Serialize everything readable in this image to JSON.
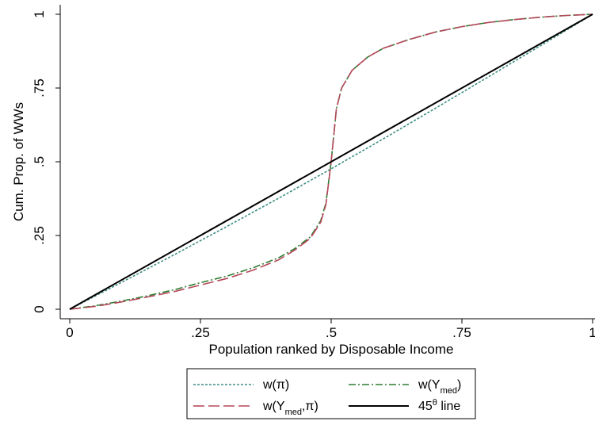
{
  "chart_data": {
    "type": "line",
    "title": "",
    "xlabel": "Population ranked by Disposable Income",
    "ylabel": "Cum. Prop. of WWs",
    "xlim": [
      0,
      1
    ],
    "ylim": [
      0,
      1
    ],
    "x_ticks": [
      {
        "value": 0,
        "label": "0"
      },
      {
        "value": 0.25,
        "label": ".25"
      },
      {
        "value": 0.5,
        "label": ".5"
      },
      {
        "value": 0.75,
        "label": ".75"
      },
      {
        "value": 1,
        "label": "1"
      }
    ],
    "y_ticks": [
      {
        "value": 0,
        "label": "0"
      },
      {
        "value": 0.25,
        "label": ".25"
      },
      {
        "value": 0.5,
        "label": ".5"
      },
      {
        "value": 0.75,
        "label": ".75"
      },
      {
        "value": 1,
        "label": "1"
      }
    ],
    "grid": false,
    "legend_position": "bottom",
    "series": [
      {
        "key": "w_pi",
        "name": "w(π)",
        "name_parts": [
          "w(π)"
        ],
        "color": "#3f8f83",
        "dash": "dotted",
        "x": [
          0,
          0.1,
          0.2,
          0.3,
          0.4,
          0.5,
          0.6,
          0.7,
          0.8,
          0.9,
          1.0
        ],
        "y": [
          0,
          0.092,
          0.185,
          0.28,
          0.377,
          0.476,
          0.578,
          0.682,
          0.787,
          0.893,
          1.0
        ]
      },
      {
        "key": "w_ymed",
        "name": "w(Ymed)",
        "name_parts": [
          "w(Y",
          "med",
          ")"
        ],
        "color": "#2e7d32",
        "dash": "dashdot",
        "x": [
          0,
          0.05,
          0.1,
          0.15,
          0.2,
          0.25,
          0.3,
          0.35,
          0.4,
          0.43,
          0.46,
          0.48,
          0.49,
          0.5,
          0.51,
          0.52,
          0.54,
          0.57,
          0.6,
          0.65,
          0.7,
          0.75,
          0.8,
          0.85,
          0.9,
          0.95,
          1.0
        ],
        "y": [
          0,
          0.012,
          0.028,
          0.046,
          0.066,
          0.09,
          0.112,
          0.14,
          0.175,
          0.205,
          0.245,
          0.3,
          0.36,
          0.5,
          0.68,
          0.75,
          0.81,
          0.855,
          0.885,
          0.915,
          0.94,
          0.958,
          0.972,
          0.982,
          0.99,
          0.996,
          1.0
        ]
      },
      {
        "key": "w_ymed_pi",
        "name": "w(Ymed,π)",
        "name_parts": [
          "w(Y",
          "med",
          ",π)"
        ],
        "color": "#b5485a",
        "dash": "longdash",
        "x": [
          0,
          0.05,
          0.1,
          0.15,
          0.2,
          0.25,
          0.3,
          0.35,
          0.4,
          0.43,
          0.46,
          0.48,
          0.49,
          0.5,
          0.51,
          0.52,
          0.54,
          0.57,
          0.6,
          0.65,
          0.7,
          0.75,
          0.8,
          0.85,
          0.9,
          0.95,
          1.0
        ],
        "y": [
          0,
          0.01,
          0.025,
          0.042,
          0.06,
          0.082,
          0.104,
          0.132,
          0.168,
          0.2,
          0.24,
          0.295,
          0.355,
          0.5,
          0.68,
          0.75,
          0.81,
          0.855,
          0.885,
          0.915,
          0.94,
          0.958,
          0.972,
          0.982,
          0.99,
          0.996,
          1.0
        ]
      },
      {
        "key": "line45",
        "name": "45θ line",
        "name_parts": [
          "45",
          "θ",
          " line"
        ],
        "color": "#000000",
        "dash": "solid",
        "x": [
          0,
          1
        ],
        "y": [
          0,
          1
        ]
      }
    ]
  }
}
